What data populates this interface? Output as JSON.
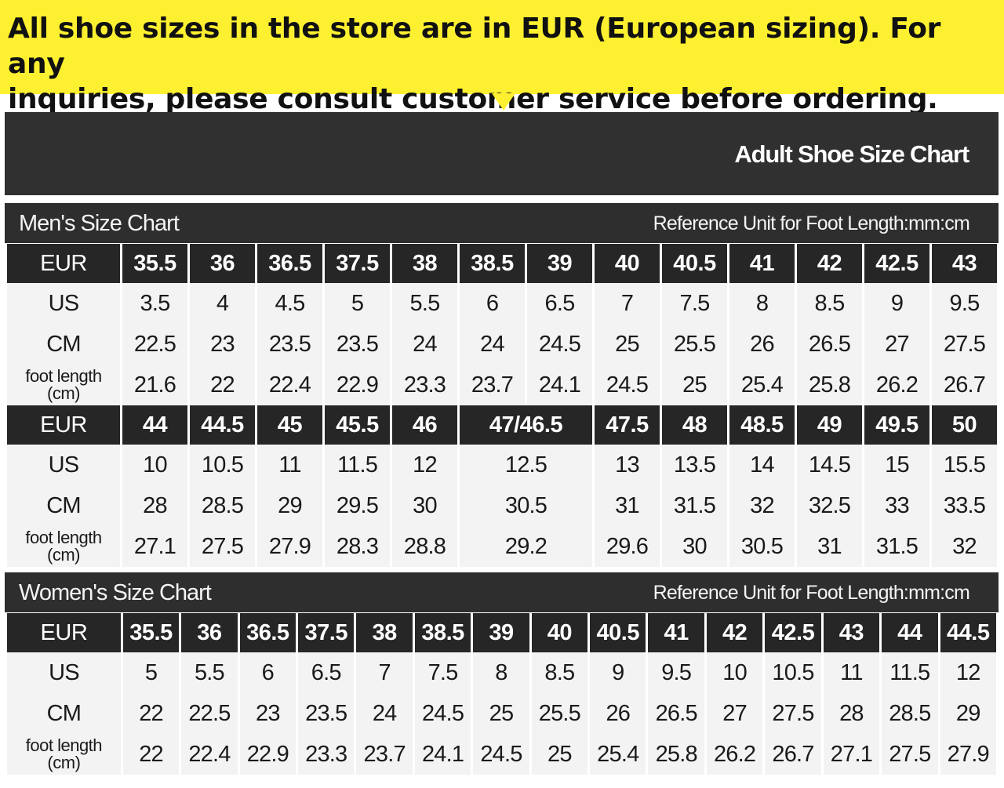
{
  "banner": {
    "line1": "All shoe sizes in the store are in EUR (European sizing). For any",
    "line2": "inquiries, please consult customer service before ordering."
  },
  "title": "Adult Shoe Size Chart",
  "men": {
    "heading": "Men's Size Chart",
    "unit_note": "Reference Unit for Foot Length:mm:cm",
    "labels": {
      "eur": "EUR",
      "us": "US",
      "cm": "CM",
      "foot1": "foot length",
      "foot2": "(cm)"
    },
    "block1": {
      "eur": [
        "35.5",
        "36",
        "36.5",
        "37.5",
        "38",
        "38.5",
        "39",
        "40",
        "40.5",
        "41",
        "42",
        "42.5",
        "43"
      ],
      "us": [
        "3.5",
        "4",
        "4.5",
        "5",
        "5.5",
        "6",
        "6.5",
        "7",
        "7.5",
        "8",
        "8.5",
        "9",
        "9.5"
      ],
      "cm": [
        "22.5",
        "23",
        "23.5",
        "23.5",
        "24",
        "24",
        "24.5",
        "25",
        "25.5",
        "26",
        "26.5",
        "27",
        "27.5"
      ],
      "foot": [
        "21.6",
        "22",
        "22.4",
        "22.9",
        "23.3",
        "23.7",
        "24.1",
        "24.5",
        "25",
        "25.4",
        "25.8",
        "26.2",
        "26.7"
      ]
    },
    "block2": {
      "eur": [
        "44",
        "44.5",
        "45",
        "45.5",
        "46",
        "47/46.5",
        "47.5",
        "48",
        "48.5",
        "49",
        "49.5",
        "50"
      ],
      "us": [
        "10",
        "10.5",
        "11",
        "11.5",
        "12",
        "12.5",
        "13",
        "13.5",
        "14",
        "14.5",
        "15",
        "15.5"
      ],
      "cm": [
        "28",
        "28.5",
        "29",
        "29.5",
        "30",
        "30.5",
        "31",
        "31.5",
        "32",
        "32.5",
        "33",
        "33.5"
      ],
      "foot": [
        "27.1",
        "27.5",
        "27.9",
        "28.3",
        "28.8",
        "29.2",
        "29.6",
        "30",
        "30.5",
        "31",
        "31.5",
        "32"
      ]
    }
  },
  "women": {
    "heading": "Women's Size Chart",
    "unit_note": "Reference Unit for Foot Length:mm:cm",
    "labels": {
      "eur": "EUR",
      "us": "US",
      "cm": "CM",
      "foot1": "foot length",
      "foot2": "(cm)"
    },
    "eur": [
      "35.5",
      "36",
      "36.5",
      "37.5",
      "38",
      "38.5",
      "39",
      "40",
      "40.5",
      "41",
      "42",
      "42.5",
      "43",
      "44",
      "44.5"
    ],
    "us": [
      "5",
      "5.5",
      "6",
      "6.5",
      "7",
      "7.5",
      "8",
      "8.5",
      "9",
      "9.5",
      "10",
      "10.5",
      "11",
      "11.5",
      "12"
    ],
    "cm": [
      "22",
      "22.5",
      "23",
      "23.5",
      "24",
      "24.5",
      "25",
      "25.5",
      "26",
      "26.5",
      "27",
      "27.5",
      "28",
      "28.5",
      "29"
    ],
    "foot": [
      "22",
      "22.4",
      "22.9",
      "23.3",
      "23.7",
      "24.1",
      "24.5",
      "25",
      "25.4",
      "25.8",
      "26.2",
      "26.7",
      "27.1",
      "27.5",
      "27.9"
    ]
  },
  "colors": {
    "banner": "#fdf030",
    "dark": "#262626",
    "cell": "#f3f3f3"
  }
}
